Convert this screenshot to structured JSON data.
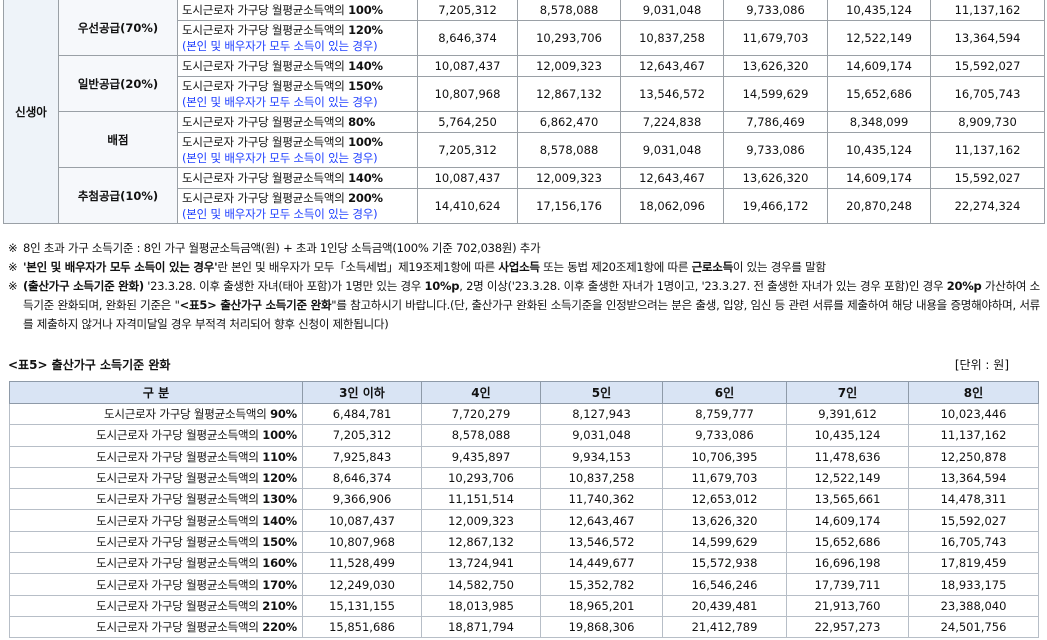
{
  "top_table": {
    "group": "신생아",
    "categories": [
      {
        "name": "우선공급(70%)",
        "rows": [
          {
            "desc": "도시근로자 가구당 월평균소득액의",
            "pct": "100%",
            "note": "",
            "values": [
              "7,205,312",
              "8,578,088",
              "9,031,048",
              "9,733,086",
              "10,435,124",
              "11,137,162"
            ]
          },
          {
            "desc": "도시근로자 가구당 월평균소득액의",
            "pct": "120%",
            "note": "(본인 및 배우자가 모두 소득이 있는 경우)",
            "values": [
              "8,646,374",
              "10,293,706",
              "10,837,258",
              "11,679,703",
              "12,522,149",
              "13,364,594"
            ]
          }
        ]
      },
      {
        "name": "일반공급(20%)",
        "rows": [
          {
            "desc": "도시근로자 가구당 월평균소득액의",
            "pct": "140%",
            "note": "",
            "values": [
              "10,087,437",
              "12,009,323",
              "12,643,467",
              "13,626,320",
              "14,609,174",
              "15,592,027"
            ]
          },
          {
            "desc": "도시근로자 가구당 월평균소득액의",
            "pct": "150%",
            "note": "(본인 및 배우자가 모두 소득이 있는 경우)",
            "values": [
              "10,807,968",
              "12,867,132",
              "13,546,572",
              "14,599,629",
              "15,652,686",
              "16,705,743"
            ]
          }
        ]
      },
      {
        "name": "배점",
        "rows": [
          {
            "desc": "도시근로자 가구당 월평균소득액의",
            "pct": "80%",
            "note": "",
            "values": [
              "5,764,250",
              "6,862,470",
              "7,224,838",
              "7,786,469",
              "8,348,099",
              "8,909,730"
            ]
          },
          {
            "desc": "도시근로자 가구당 월평균소득액의",
            "pct": "100%",
            "note": "(본인 및 배우자가 모두 소득이 있는 경우)",
            "values": [
              "7,205,312",
              "8,578,088",
              "9,031,048",
              "9,733,086",
              "10,435,124",
              "11,137,162"
            ]
          }
        ]
      },
      {
        "name": "추첨공급(10%)",
        "rows": [
          {
            "desc": "도시근로자 가구당 월평균소득액의",
            "pct": "140%",
            "note": "",
            "values": [
              "10,087,437",
              "12,009,323",
              "12,643,467",
              "13,626,320",
              "14,609,174",
              "15,592,027"
            ]
          },
          {
            "desc": "도시근로자 가구당 월평균소득액의",
            "pct": "200%",
            "note": "(본인 및 배우자가 모두 소득이 있는 경우)",
            "values": [
              "14,410,624",
              "17,156,176",
              "18,062,096",
              "19,466,172",
              "20,870,248",
              "22,274,324"
            ]
          }
        ]
      }
    ]
  },
  "notes": {
    "mark": "※",
    "n1": "8인 초과 가구 소득기준 : 8인 가구 월평균소득금액(원) + 초과 1인당 소득금액(100% 기준 702,038원) 추가",
    "n2_a": "'본인 및 배우자가 모두 소득이 있는 경우'",
    "n2_b": "란 본인 및 배우자가 모두「소득세법」제19조제1항에 따른 ",
    "n2_c": "사업소득",
    "n2_d": " 또는 동법 제20조제1항에 따른 ",
    "n2_e": "근로소득",
    "n2_f": "이 있는 경우를 말함",
    "n3_a": "(출산가구 소득기준 완화)",
    "n3_b": " '23.3.28. 이후 출생한 자녀(태아 포함)가 1명만 있는 경우 ",
    "n3_c": "10%p",
    "n3_d": ", 2명 이상('23.3.28. 이후 출생한 자녀가 1명이고, '23.3.27. 전 출생한 자녀가 있는 경우 포함)인 경우 ",
    "n3_e": "20%p",
    "n3_f": " 가산하여 소득기준 완화되며, 완화된 기준은 \"",
    "n3_g": "<표5> 출산가구 소득기준 완화",
    "n3_h": "\"를 참고하시기 바랍니다.(단, 출산가구 완화된 소득기준을 인정받으려는 분은 출생, 입양, 임신 등 관련 서류를 제출하여 해당 내용을 증명해야하며, 서류를 제출하지 않거나 자격미달일 경우 부적격 처리되어 향후 신청이 제한됩니다)"
  },
  "table5": {
    "title": "<표5> 출산가구 소득기준 완화",
    "unit": "[단위 : 원]",
    "headers": [
      "구   분",
      "3인 이하",
      "4인",
      "5인",
      "6인",
      "7인",
      "8인"
    ],
    "row_prefix": "도시근로자 가구당 월평균소득액의",
    "rows": [
      {
        "pct": "90%",
        "values": [
          "6,484,781",
          "7,720,279",
          "8,127,943",
          "8,759,777",
          "9,391,612",
          "10,023,446"
        ]
      },
      {
        "pct": "100%",
        "values": [
          "7,205,312",
          "8,578,088",
          "9,031,048",
          "9,733,086",
          "10,435,124",
          "11,137,162"
        ]
      },
      {
        "pct": "110%",
        "values": [
          "7,925,843",
          "9,435,897",
          "9,934,153",
          "10,706,395",
          "11,478,636",
          "12,250,878"
        ]
      },
      {
        "pct": "120%",
        "values": [
          "8,646,374",
          "10,293,706",
          "10,837,258",
          "11,679,703",
          "12,522,149",
          "13,364,594"
        ]
      },
      {
        "pct": "130%",
        "values": [
          "9,366,906",
          "11,151,514",
          "11,740,362",
          "12,653,012",
          "13,565,661",
          "14,478,311"
        ]
      },
      {
        "pct": "140%",
        "values": [
          "10,087,437",
          "12,009,323",
          "12,643,467",
          "13,626,320",
          "14,609,174",
          "15,592,027"
        ]
      },
      {
        "pct": "150%",
        "values": [
          "10,807,968",
          "12,867,132",
          "13,546,572",
          "14,599,629",
          "15,652,686",
          "16,705,743"
        ]
      },
      {
        "pct": "160%",
        "values": [
          "11,528,499",
          "13,724,941",
          "14,449,677",
          "15,572,938",
          "16,696,198",
          "17,819,459"
        ]
      },
      {
        "pct": "170%",
        "values": [
          "12,249,030",
          "14,582,750",
          "15,352,782",
          "16,546,246",
          "17,739,711",
          "18,933,175"
        ]
      },
      {
        "pct": "210%",
        "values": [
          "15,131,155",
          "18,013,985",
          "18,965,201",
          "20,439,481",
          "21,913,760",
          "23,388,040"
        ]
      },
      {
        "pct": "220%",
        "values": [
          "15,851,686",
          "18,871,794",
          "19,868,306",
          "21,412,789",
          "22,957,273",
          "24,501,756"
        ]
      }
    ]
  }
}
